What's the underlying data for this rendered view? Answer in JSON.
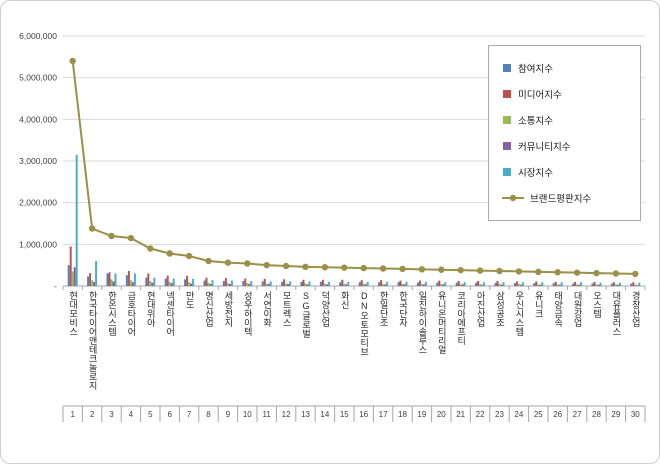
{
  "chart_data": {
    "type": "bar",
    "title": "",
    "grid": true,
    "legend_position": "top-right",
    "ylim": [
      0,
      6000000
    ],
    "ytick_interval": 1000000,
    "yticks": [
      {
        "v": 0,
        "label": "-"
      },
      {
        "v": 1000000,
        "label": "1,000,000"
      },
      {
        "v": 2000000,
        "label": "2,000,000"
      },
      {
        "v": 3000000,
        "label": "3,000,000"
      },
      {
        "v": 4000000,
        "label": "4,000,000"
      },
      {
        "v": 5000000,
        "label": "5,000,000"
      },
      {
        "v": 6000000,
        "label": "6,000,000"
      }
    ],
    "categories": [
      "현대모비스",
      "한국타이어앤테크놀로지",
      "한온시스템",
      "금호타이어",
      "현대위아",
      "넥센타이어",
      "만도",
      "명신산업",
      "세방전지",
      "성우하이텍",
      "서연이화",
      "모트렉스",
      "SG글로벌",
      "덕양산업",
      "화신",
      "DN오토모티브",
      "한일단조",
      "한국단자",
      "일진하이솔루스",
      "유니온머티리얼",
      "코리아에프티",
      "아진산업",
      "삼성공조",
      "우신시스템",
      "유니크",
      "태양금속",
      "대원강업",
      "오스템",
      "대유플러스",
      "경창산업"
    ],
    "ranks": [
      "1",
      "2",
      "3",
      "4",
      "5",
      "6",
      "7",
      "8",
      "9",
      "10",
      "11",
      "12",
      "13",
      "14",
      "15",
      "16",
      "17",
      "18",
      "19",
      "20",
      "21",
      "22",
      "23",
      "24",
      "25",
      "26",
      "27",
      "28",
      "29",
      "30"
    ],
    "series": [
      {
        "name": "참여지수",
        "type": "bar",
        "color": "#4F81BD",
        "values": [
          500000,
          230000,
          300000,
          260000,
          200000,
          180000,
          160000,
          130000,
          120000,
          120000,
          110000,
          100000,
          100000,
          100000,
          90000,
          90000,
          90000,
          90000,
          80000,
          80000,
          80000,
          80000,
          70000,
          70000,
          70000,
          70000,
          60000,
          60000,
          60000,
          60000
        ]
      },
      {
        "name": "미디어지수",
        "type": "bar",
        "color": "#C0504D",
        "values": [
          950000,
          310000,
          330000,
          360000,
          300000,
          250000,
          240000,
          200000,
          190000,
          180000,
          170000,
          160000,
          150000,
          150000,
          150000,
          140000,
          140000,
          130000,
          130000,
          130000,
          120000,
          120000,
          120000,
          110000,
          110000,
          100000,
          100000,
          100000,
          90000,
          90000
        ]
      },
      {
        "name": "소통지수",
        "type": "bar",
        "color": "#9BBB59",
        "values": [
          350000,
          140000,
          160000,
          140000,
          120000,
          100000,
          90000,
          80000,
          70000,
          70000,
          60000,
          60000,
          60000,
          60000,
          60000,
          60000,
          50000,
          50000,
          50000,
          50000,
          50000,
          50000,
          50000,
          50000,
          40000,
          40000,
          40000,
          40000,
          40000,
          40000
        ]
      },
      {
        "name": "커뮤니티지수",
        "type": "bar",
        "color": "#8064A2",
        "values": [
          450000,
          100000,
          110000,
          90000,
          80000,
          70000,
          60000,
          50000,
          50000,
          50000,
          50000,
          50000,
          40000,
          40000,
          40000,
          40000,
          40000,
          40000,
          40000,
          40000,
          40000,
          30000,
          30000,
          30000,
          30000,
          30000,
          30000,
          30000,
          30000,
          20000
        ]
      },
      {
        "name": "시장지수",
        "type": "bar",
        "color": "#4BACC6",
        "values": [
          3150000,
          600000,
          300000,
          300000,
          200000,
          180000,
          170000,
          140000,
          130000,
          120000,
          110000,
          110000,
          110000,
          100000,
          100000,
          100000,
          100000,
          100000,
          100000,
          90000,
          90000,
          90000,
          90000,
          90000,
          90000,
          90000,
          90000,
          80000,
          80000,
          80000
        ]
      },
      {
        "name": "브랜드평판지수",
        "type": "line",
        "color": "#9A9048",
        "values": [
          5400000,
          1380000,
          1200000,
          1150000,
          900000,
          780000,
          720000,
          600000,
          560000,
          540000,
          500000,
          480000,
          460000,
          450000,
          440000,
          430000,
          420000,
          410000,
          400000,
          390000,
          380000,
          370000,
          360000,
          350000,
          340000,
          330000,
          320000,
          310000,
          300000,
          290000
        ]
      }
    ]
  },
  "colors": {
    "gridline": "#d9d9d9",
    "axis": "#a6a6a6",
    "tick_text": "#404040"
  }
}
